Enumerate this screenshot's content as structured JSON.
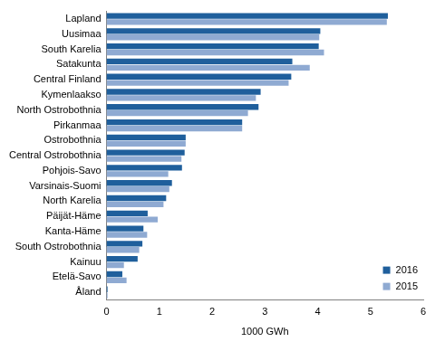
{
  "chart_data": {
    "type": "bar",
    "orientation": "horizontal",
    "x_label": "1000 GWh",
    "categories": [
      "Lapland",
      "Uusimaa",
      "South Karelia",
      "Satakunta",
      "Central Finland",
      "Kymenlaakso",
      "North Ostrobothnia",
      "Pirkanmaa",
      "Ostrobothnia",
      "Central Ostrobothnia",
      "Pohjois-Savo",
      "Varsinais-Suomi",
      "North Karelia",
      "Päijät-Häme",
      "Kanta-Häme",
      "South Ostrobothnia",
      "Kainuu",
      "Etelä-Savo",
      "Åland"
    ],
    "series": [
      {
        "name": "2016",
        "color": "#1f5f9c",
        "values": [
          5.33,
          4.05,
          4.02,
          3.52,
          3.5,
          2.92,
          2.88,
          2.57,
          1.5,
          1.48,
          1.43,
          1.24,
          1.13,
          0.78,
          0.7,
          0.68,
          0.59,
          0.3,
          0.02
        ]
      },
      {
        "name": "2015",
        "color": "#8faad2",
        "values": [
          5.31,
          4.03,
          4.12,
          3.85,
          3.45,
          2.83,
          2.68,
          2.57,
          1.5,
          1.42,
          1.17,
          1.19,
          1.08,
          0.97,
          0.77,
          0.62,
          0.33,
          0.38,
          0.02
        ]
      }
    ],
    "xlim": [
      0,
      6
    ],
    "xticks": [
      0,
      1,
      2,
      3,
      4,
      5,
      6
    ],
    "grid": false,
    "legend": "lower right"
  }
}
